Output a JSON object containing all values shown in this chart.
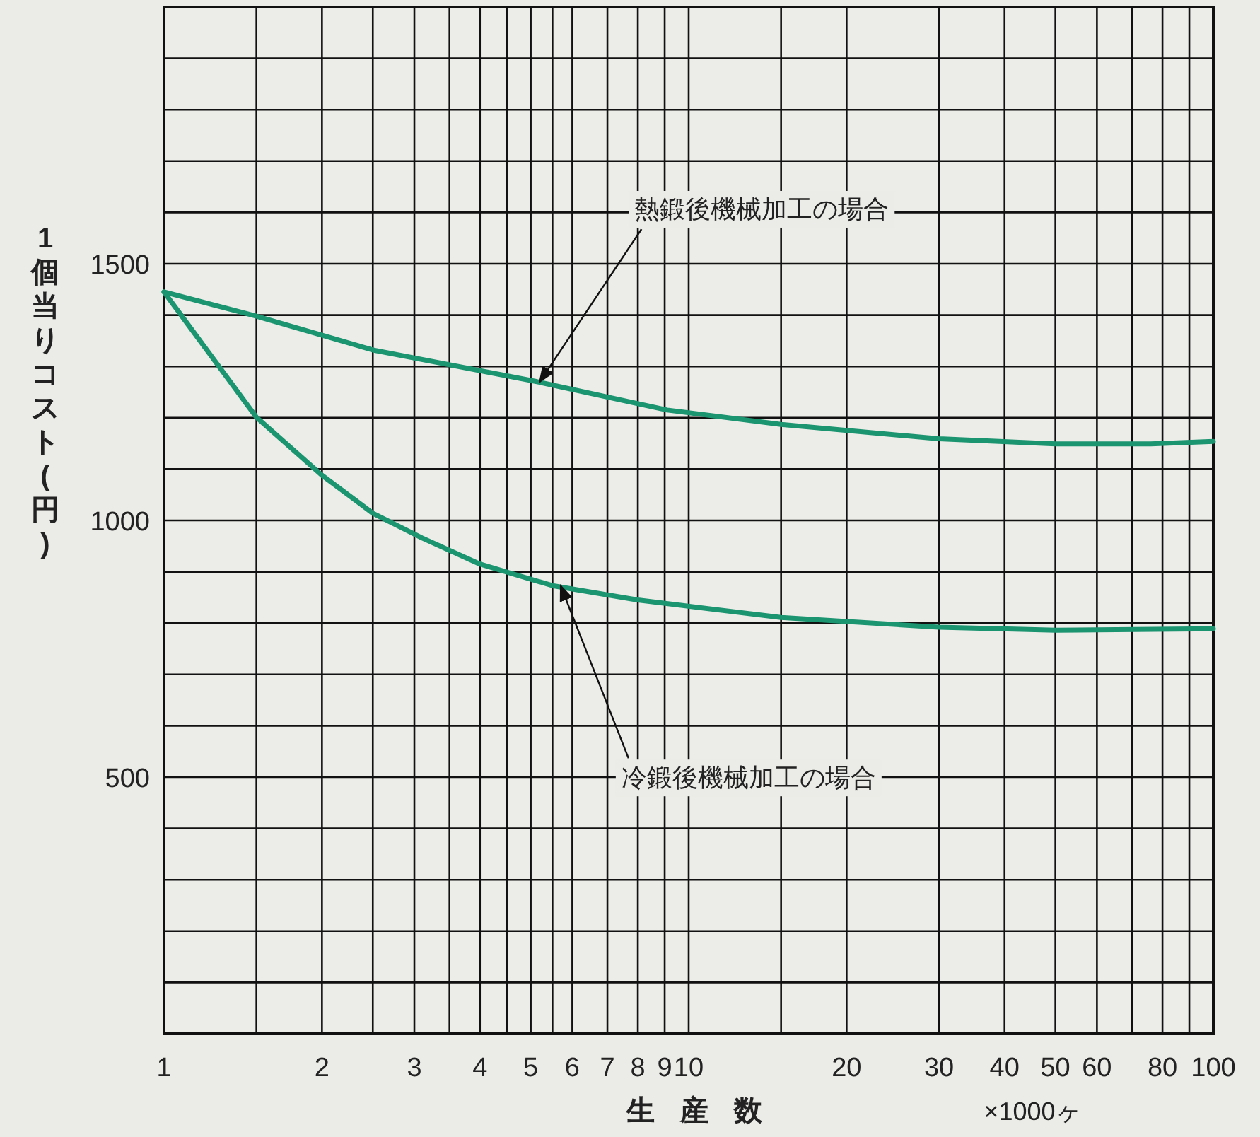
{
  "chart_data": {
    "type": "line",
    "xlabel": "生産数",
    "ylabel": "1個当りコスト(円)",
    "log": "x",
    "grid": true,
    "xlim": [
      1,
      100
    ],
    "ylim": [
      0,
      2000
    ],
    "xticks": [
      1,
      {
        "value": 1.5,
        "label": null
      },
      2,
      {
        "value": 2.5,
        "label": null
      },
      3,
      {
        "value": 3.5,
        "label": null
      },
      4,
      {
        "value": 4.5,
        "label": null
      },
      5,
      {
        "value": 5.5,
        "label": null
      },
      6,
      7,
      8,
      9,
      10,
      {
        "value": 15,
        "label": null
      },
      20,
      30,
      40,
      50,
      60,
      {
        "value": 70,
        "label": null
      },
      80,
      {
        "value": 90,
        "label": null
      },
      100
    ],
    "yticks": [
      {
        "value": 100,
        "label": null
      },
      {
        "value": 200,
        "label": null
      },
      {
        "value": 300,
        "label": null
      },
      {
        "value": 400,
        "label": null
      },
      500,
      {
        "value": 600,
        "label": null
      },
      {
        "value": 700,
        "label": null
      },
      {
        "value": 800,
        "label": null
      },
      {
        "value": 900,
        "label": null
      },
      1000,
      {
        "value": 1100,
        "label": null
      },
      {
        "value": 1200,
        "label": null
      },
      {
        "value": 1300,
        "label": null
      },
      {
        "value": 1400,
        "label": null
      },
      1500,
      {
        "value": 1600,
        "label": null
      },
      {
        "value": 1700,
        "label": null
      },
      {
        "value": 1800,
        "label": null
      },
      {
        "value": 1900,
        "label": null
      }
    ],
    "series": [
      {
        "color": "#1b9470",
        "x": [
          1,
          1.5,
          2.5,
          5.1,
          9.1,
          15,
          30,
          50,
          76,
          100
        ],
        "values": [
          1445,
          1398,
          1332,
          1271,
          1215,
          1187,
          1159,
          1149,
          1149,
          1154
        ]
      },
      {
        "color": "#1b9470",
        "x": [
          1,
          1.5,
          2,
          2.5,
          3.1,
          4,
          5.5,
          8,
          15,
          30,
          50,
          100
        ],
        "values": [
          1445,
          1201,
          1088,
          1014,
          966,
          915,
          873,
          845,
          811,
          792,
          786,
          789
        ]
      }
    ],
    "annotations": [
      {
        "text": "熱鍛後機械加工の場合",
        "x": 5.2,
        "y": 1270
      },
      {
        "text": "冷鍛後機械加工の場合",
        "x": 5.7,
        "y": 873
      },
      "×1000ヶ"
    ]
  }
}
